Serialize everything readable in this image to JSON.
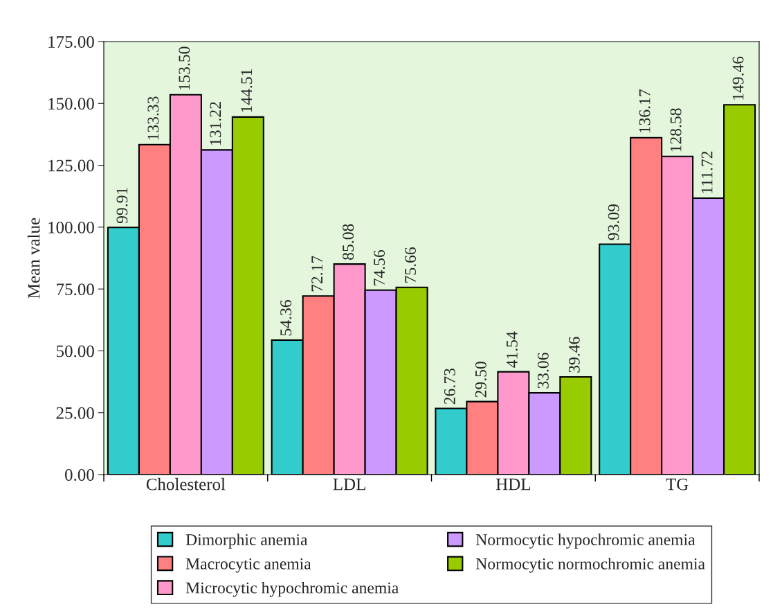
{
  "chart_data": {
    "type": "bar",
    "ylabel": "Mean value",
    "categories": [
      "Cholesterol",
      "LDL",
      "HDL",
      "TG"
    ],
    "series": [
      {
        "name": "Dimorphic anemia",
        "color": "#33cccc",
        "values": [
          99.91,
          54.36,
          26.73,
          93.09
        ],
        "value_labels": [
          "99.91",
          "54.36",
          "26.73",
          "93.09"
        ]
      },
      {
        "name": "Macrocytic anemia",
        "color": "#ff8080",
        "values": [
          133.33,
          72.17,
          29.5,
          136.17
        ],
        "value_labels": [
          "133.33",
          "72.17",
          "29.50",
          "136.17"
        ]
      },
      {
        "name": "Microcytic hypochromic anemia",
        "color": "#ff99cc",
        "values": [
          153.5,
          85.08,
          41.54,
          128.58
        ],
        "value_labels": [
          "153.50",
          "85.08",
          "41.54",
          "128.58"
        ]
      },
      {
        "name": "Normocytic hypochromic anemia",
        "color": "#cc99ff",
        "values": [
          131.22,
          74.56,
          33.06,
          111.72
        ],
        "value_labels": [
          "131.22",
          "74.56",
          "33.06",
          "111.72"
        ]
      },
      {
        "name": "Normocytic normochromic anemia",
        "color": "#99cc00",
        "values": [
          144.51,
          75.66,
          39.46,
          149.46
        ],
        "value_labels": [
          "144.51",
          "75.66",
          "39.46",
          "149.46"
        ]
      }
    ],
    "ylim": [
      0,
      175
    ],
    "yticks": [
      {
        "value": 0,
        "label": "0.00"
      },
      {
        "value": 25,
        "label": "25.00"
      },
      {
        "value": 50,
        "label": "50.00"
      },
      {
        "value": 75,
        "label": "75.00"
      },
      {
        "value": 100,
        "label": "100.00"
      },
      {
        "value": 125,
        "label": "125.00"
      },
      {
        "value": 150,
        "label": "150.00"
      },
      {
        "value": 175,
        "label": "175.00"
      }
    ],
    "grid": false,
    "legend": "bottom"
  }
}
